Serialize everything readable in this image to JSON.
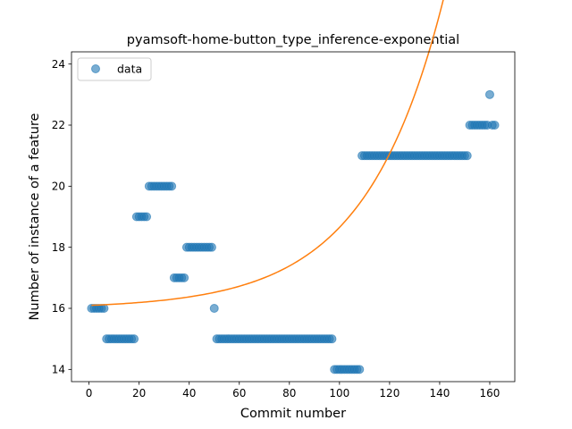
{
  "chart_data": {
    "type": "scatter",
    "title": "pyamsoft-home-button_type_inference-exponential",
    "xlabel": "Commit number",
    "ylabel": "Number of instance of a feature",
    "xlim": [
      -7,
      170
    ],
    "ylim": [
      13.6,
      24.4
    ],
    "xticks": [
      0,
      20,
      40,
      60,
      80,
      100,
      120,
      140,
      160
    ],
    "yticks": [
      14,
      16,
      18,
      20,
      22,
      24
    ],
    "grid": false,
    "legend": {
      "placement": "top-left",
      "entries": [
        "data"
      ]
    },
    "colors": {
      "data": "#1f77b4",
      "fit": "#ff7f0e"
    },
    "series": [
      {
        "name": "data",
        "kind": "scatter",
        "segments": [
          {
            "x_start": 1,
            "x_end": 6,
            "y": 16
          },
          {
            "x_start": 7,
            "x_end": 18,
            "y": 15
          },
          {
            "x_start": 19,
            "x_end": 23,
            "y": 19
          },
          {
            "x_start": 24,
            "x_end": 33,
            "y": 20
          },
          {
            "x_start": 34,
            "x_end": 38,
            "y": 17
          },
          {
            "x_start": 39,
            "x_end": 49,
            "y": 18
          },
          {
            "x_start": 50,
            "x_end": 50,
            "y": 16
          },
          {
            "x_start": 51,
            "x_end": 97,
            "y": 15
          },
          {
            "x_start": 98,
            "x_end": 108,
            "y": 14
          },
          {
            "x_start": 109,
            "x_end": 151,
            "y": 21
          },
          {
            "x_start": 152,
            "x_end": 159,
            "y": 22
          },
          {
            "x_start": 160,
            "x_end": 160,
            "y": 23
          },
          {
            "x_start": 161,
            "x_end": 162,
            "y": 22
          }
        ]
      },
      {
        "kind": "line",
        "model": "exponential",
        "params": {
          "a": 0.1064,
          "b": 0.0322,
          "c": 15.989
        },
        "x_range": [
          1,
          162
        ]
      }
    ]
  }
}
